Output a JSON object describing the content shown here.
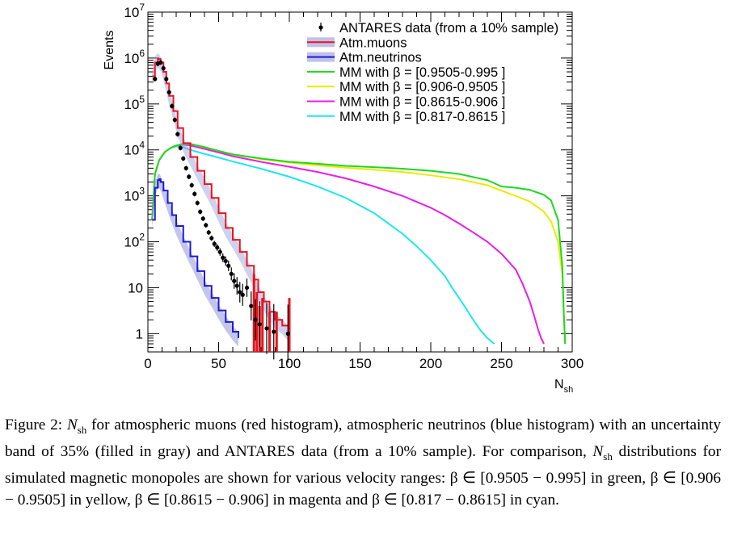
{
  "chart_data": {
    "type": "line",
    "xlabel": "N",
    "xlabel_sub": "sh",
    "ylabel": "Events",
    "xlim": [
      0,
      300
    ],
    "ylim": [
      0.4,
      10000000
    ],
    "yscale": "log",
    "x_ticks": [
      "0",
      "50",
      "100",
      "150",
      "200",
      "250",
      "300"
    ],
    "y_ticks": [
      {
        "value": 1,
        "base": "1",
        "exp": ""
      },
      {
        "value": 10,
        "base": "10",
        "exp": ""
      },
      {
        "value": 100,
        "base": "10",
        "exp": "2"
      },
      {
        "value": 1000,
        "base": "10",
        "exp": "3"
      },
      {
        "value": 10000,
        "base": "10",
        "exp": "4"
      },
      {
        "value": 100000,
        "base": "10",
        "exp": "5"
      },
      {
        "value": 1000000,
        "base": "10",
        "exp": "6"
      },
      {
        "value": 10000000,
        "base": "10",
        "exp": "7"
      }
    ],
    "legend_position": "top-right",
    "legend": [
      {
        "label": "ANTARES data (from a 10% sample)",
        "symbol": "marker",
        "color": "#000000"
      },
      {
        "label": "Atm.muons",
        "symbol": "band",
        "color": "#e8141c"
      },
      {
        "label": "Atm.neutrinos",
        "symbol": "band",
        "color": "#1b1bd6"
      },
      {
        "label": "MM with   β = [0.9505-0.995 ]",
        "symbol": "line",
        "color": "#1ed81e"
      },
      {
        "label": "MM with   β = [0.906-0.9505 ]",
        "symbol": "line",
        "color": "#eaea00"
      },
      {
        "label": "MM with   β = [0.8615-0.906 ]",
        "symbol": "line",
        "color": "#e81ee8"
      },
      {
        "label": "MM with   β = [0.817-0.8615 ]",
        "symbol": "line",
        "color": "#1ee6ee"
      }
    ],
    "series": [
      {
        "name": "Atm.muons",
        "color": "#e8141c",
        "x": [
          3,
          5,
          7,
          9,
          11,
          13,
          15,
          18,
          21,
          25,
          30,
          35,
          40,
          45,
          50,
          55,
          60,
          65,
          70,
          75,
          78,
          82,
          86,
          90,
          95,
          100
        ],
        "y": [
          400000,
          800000,
          950000,
          800000,
          500000,
          280000,
          150000,
          70000,
          30000,
          14000,
          7000,
          3500,
          1800,
          900,
          420,
          200,
          110,
          60,
          30,
          15,
          8,
          5,
          3,
          2,
          1.5,
          1
        ]
      },
      {
        "name": "Atm.neutrinos",
        "color": "#1b1bd6",
        "x": [
          3,
          5,
          7,
          8,
          9,
          11,
          14,
          17,
          20,
          25,
          30,
          35,
          40,
          45,
          50,
          55,
          60,
          64
        ],
        "y": [
          300,
          1500,
          2200,
          2300,
          2000,
          1300,
          700,
          380,
          220,
          100,
          48,
          23,
          11,
          6,
          3.2,
          1.8,
          1.1,
          0.8
        ]
      },
      {
        "name": "MM with   β = [0.9505-0.995 ]",
        "color": "#1ed81e",
        "x": [
          3,
          5,
          8,
          12,
          16,
          20,
          25,
          30,
          40,
          50,
          60,
          80,
          100,
          120,
          140,
          160,
          180,
          200,
          220,
          240,
          250,
          260,
          270,
          280,
          285,
          290,
          293,
          294,
          295
        ],
        "y": [
          300,
          3000,
          6000,
          9000,
          11000,
          12500,
          13500,
          13500,
          11500,
          9500,
          8000,
          6500,
          5500,
          5000,
          4500,
          4200,
          3900,
          3500,
          3000,
          2200,
          1600,
          1500,
          1350,
          1050,
          800,
          300,
          30,
          3,
          0.6
        ]
      },
      {
        "name": "MM with   β = [0.906-0.9505 ]",
        "color": "#eaea00",
        "x": [
          3,
          5,
          8,
          12,
          16,
          20,
          25,
          30,
          40,
          50,
          60,
          80,
          100,
          120,
          140,
          160,
          180,
          200,
          220,
          240,
          250,
          260,
          270,
          280,
          285,
          290,
          293,
          294,
          295
        ],
        "y": [
          300,
          3000,
          6000,
          9000,
          11000,
          12500,
          13500,
          13500,
          11500,
          9500,
          8000,
          6300,
          5300,
          4600,
          4100,
          3700,
          3300,
          2800,
          2300,
          1700,
          1300,
          1000,
          750,
          450,
          280,
          100,
          20,
          3,
          0.6
        ]
      },
      {
        "name": "MM with   β = [0.8615-0.906 ]",
        "color": "#e81ee8",
        "x": [
          3,
          5,
          8,
          12,
          16,
          20,
          25,
          30,
          40,
          50,
          60,
          80,
          100,
          120,
          140,
          160,
          180,
          200,
          210,
          220,
          230,
          240,
          250,
          260,
          265,
          270,
          273,
          276,
          278,
          280
        ],
        "y": [
          300,
          3000,
          6000,
          9000,
          11000,
          12500,
          13000,
          12500,
          10500,
          8800,
          7300,
          5500,
          4300,
          3300,
          2400,
          1600,
          1000,
          550,
          380,
          250,
          160,
          100,
          55,
          25,
          12,
          5,
          2.5,
          1.2,
          0.8,
          0.6
        ]
      },
      {
        "name": "MM with   β = [0.817-0.8615 ]",
        "color": "#1ee6ee",
        "x": [
          3,
          5,
          8,
          12,
          16,
          20,
          25,
          30,
          40,
          50,
          60,
          80,
          100,
          120,
          140,
          160,
          180,
          190,
          200,
          210,
          215,
          220,
          225,
          230,
          235,
          240,
          245
        ],
        "y": [
          300,
          3000,
          6000,
          9000,
          11000,
          12000,
          11500,
          10000,
          8200,
          6800,
          5600,
          3900,
          2600,
          1600,
          900,
          420,
          150,
          80,
          40,
          18,
          10,
          6,
          3.5,
          2,
          1.2,
          0.8,
          0.6
        ]
      }
    ],
    "data_points": {
      "name": "ANTARES data (from a 10% sample)",
      "x": [
        5,
        7,
        9,
        11,
        13,
        15,
        17,
        19,
        21,
        23,
        25,
        27,
        29,
        31,
        33,
        35,
        37,
        39,
        41,
        43,
        45,
        47,
        49,
        51,
        53,
        55,
        57,
        59,
        61,
        63,
        65,
        67,
        70,
        73,
        76,
        79,
        84,
        89,
        99
      ],
      "y": [
        350000,
        750000,
        800000,
        600000,
        350000,
        180000,
        90000,
        45000,
        22000,
        11000,
        6500,
        4000,
        2600,
        1700,
        1100,
        700,
        450,
        320,
        230,
        160,
        120,
        90,
        75,
        60,
        45,
        38,
        30,
        20,
        14,
        11,
        8,
        7,
        10,
        4,
        2,
        1.6,
        1.3,
        1.1,
        1
      ]
    }
  },
  "caption": {
    "part1": "Figure 2: ",
    "nsh_1": "N",
    "nsh_1_sub": "sh",
    "part2": " for atmospheric muons (red histogram), atmospheric neutrinos (blue histogram) with an uncertainty band of 35% (filled in gray) and ANTARES data (from a 10% sample).  For comparison, ",
    "nsh_2": "N",
    "nsh_2_sub": "sh",
    "part3": " distributions for simulated magnetic monopoles are shown for various velocity ranges: β ∈ [0.9505 − 0.995] in green, β ∈ [0.906 − 0.9505] in yellow, β ∈ [0.8615 − 0.906] in magenta and β ∈ [0.817 − 0.8615] in cyan."
  }
}
